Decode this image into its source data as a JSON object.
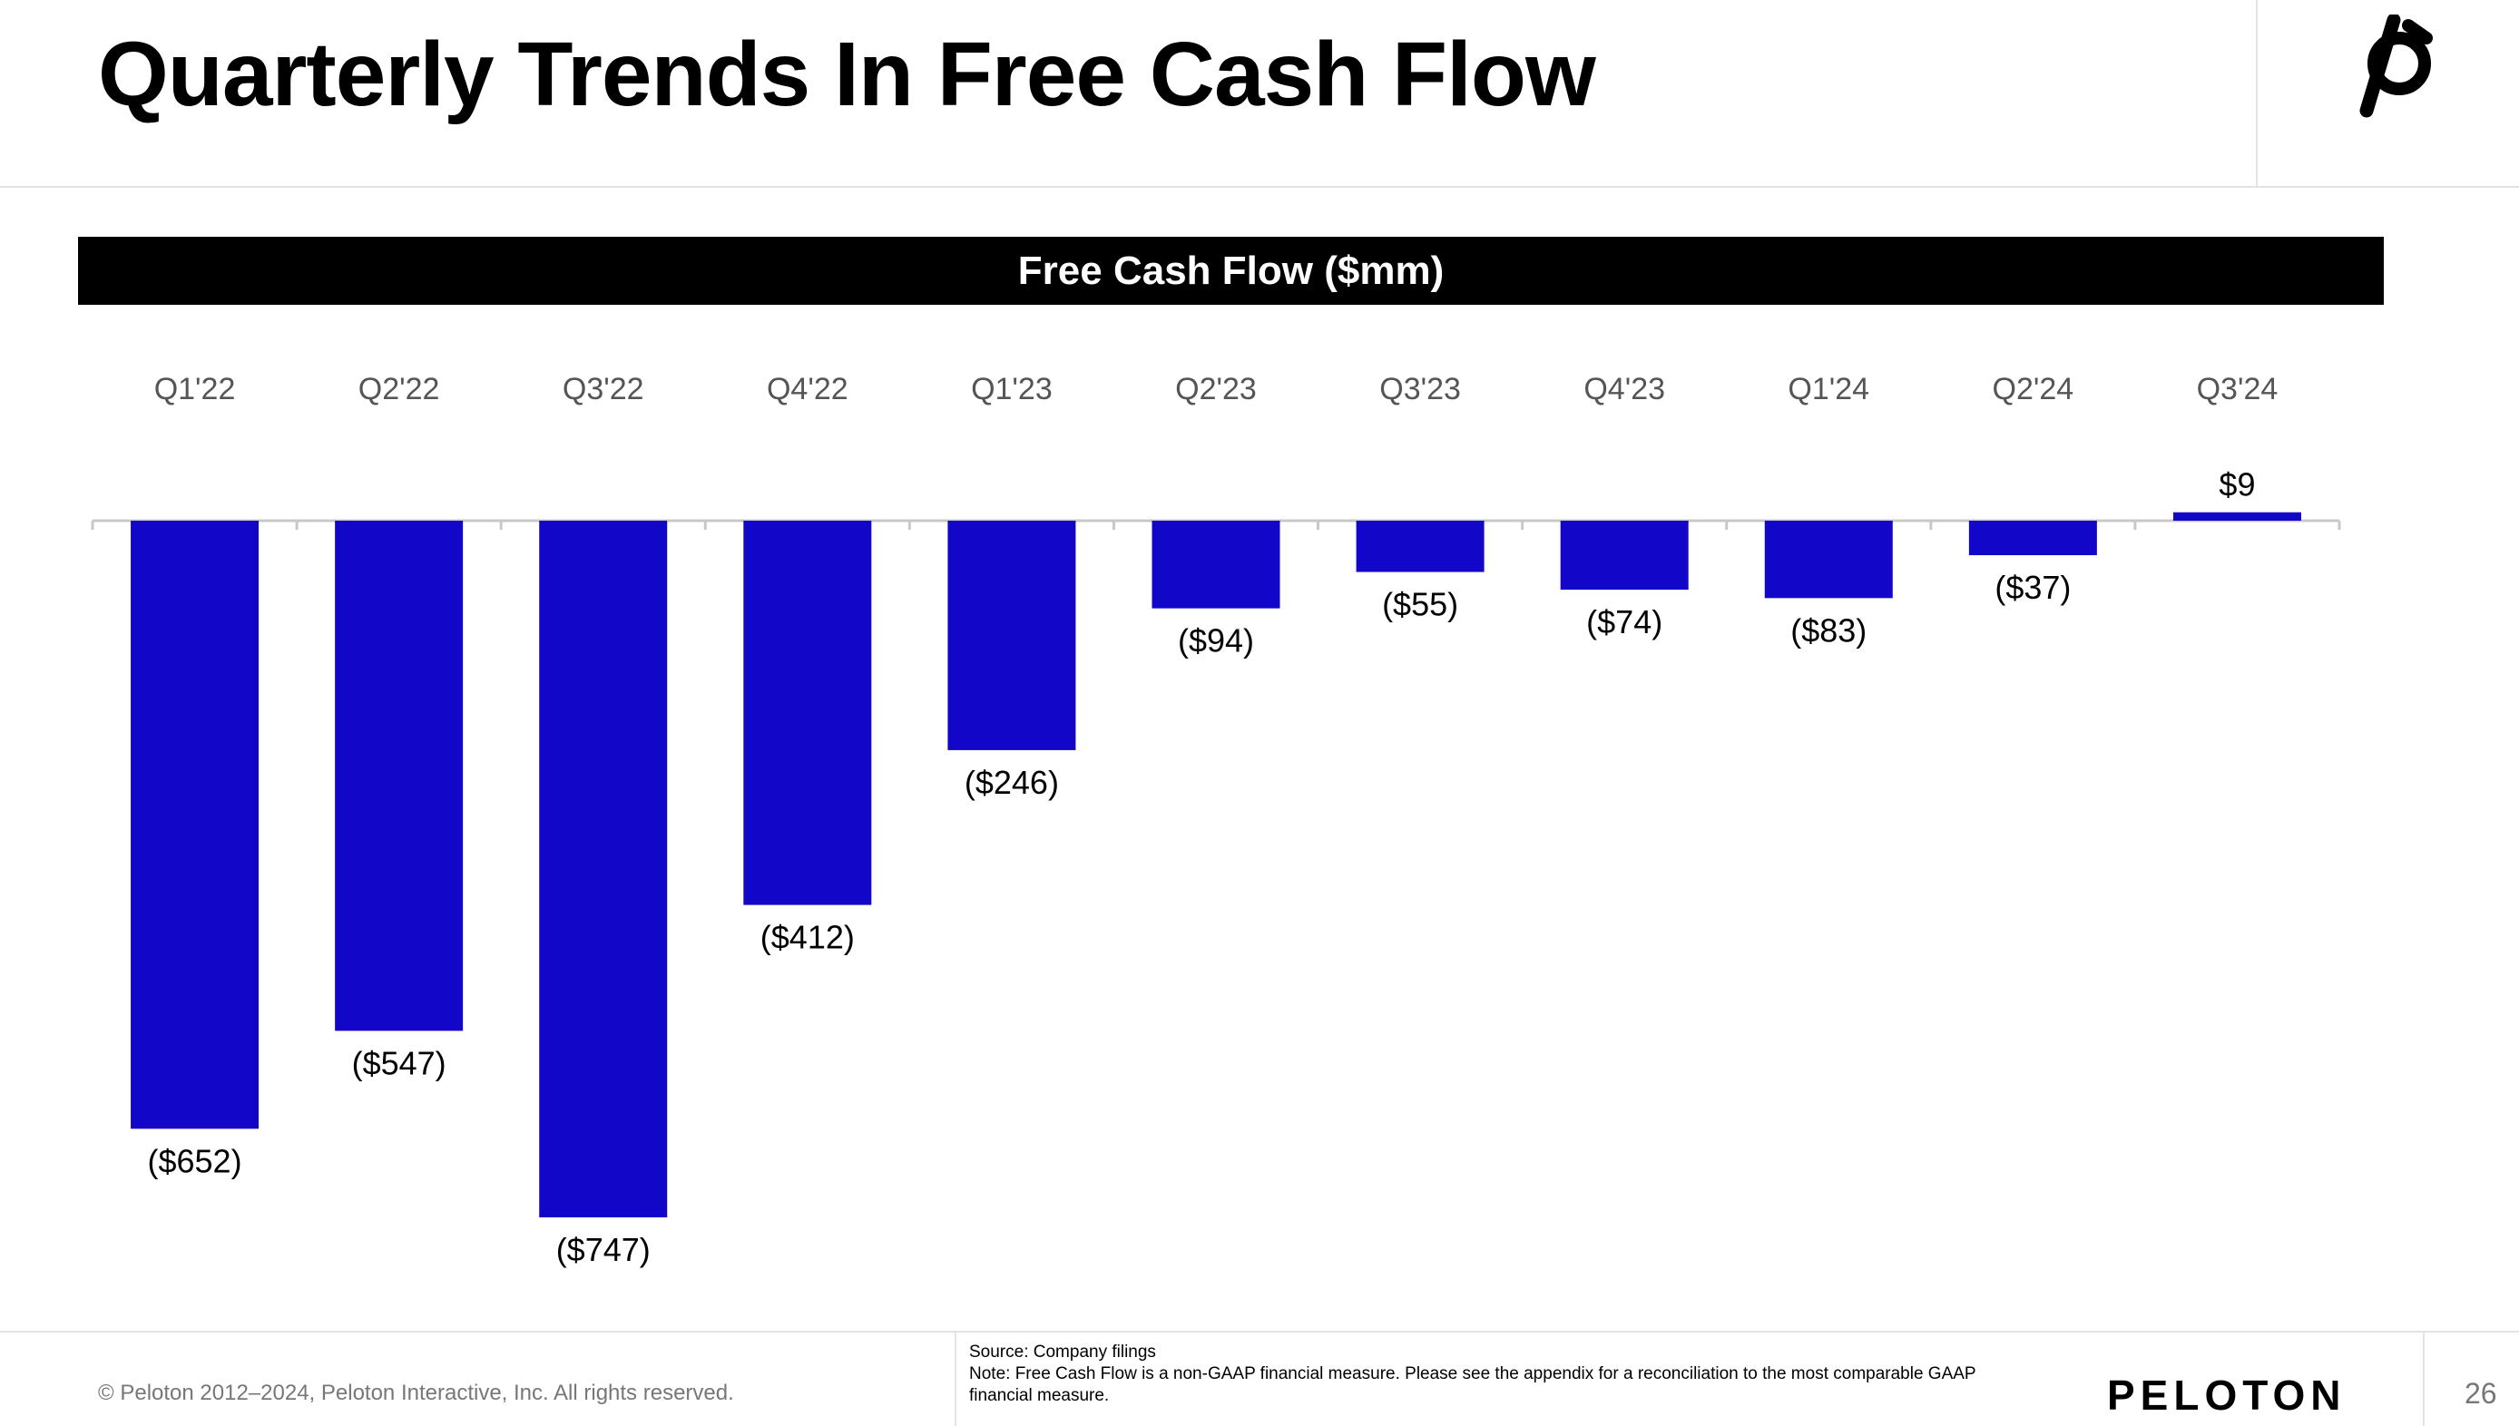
{
  "slide": {
    "title": "Quarterly Trends In Free Cash Flow",
    "page_number": "26"
  },
  "logo": {
    "icon": "peloton-logo-icon"
  },
  "chart_banner": "Free Cash Flow ($mm)",
  "chart_data": {
    "type": "bar",
    "title": "Free Cash Flow ($mm)",
    "categories": [
      "Q1'22",
      "Q2'22",
      "Q3'22",
      "Q4'22",
      "Q1'23",
      "Q2'23",
      "Q3'23",
      "Q4'23",
      "Q1'24",
      "Q2'24",
      "Q3'24"
    ],
    "values": [
      -652,
      -547,
      -747,
      -412,
      -246,
      -94,
      -55,
      -74,
      -83,
      -37,
      9
    ],
    "data_labels": [
      "($652)",
      "($547)",
      "($747)",
      "($412)",
      "($246)",
      "($94)",
      "($55)",
      "($74)",
      "($83)",
      "($37)",
      "$9"
    ],
    "xlabel": "",
    "ylabel": "",
    "category_axis_position": "top",
    "ylim": [
      -747,
      9
    ],
    "grid": false,
    "legend": "none",
    "bar_color": "#1207c8"
  },
  "footer": {
    "copyright": "© Peloton 2012–2024, Peloton Interactive, Inc. All rights reserved.",
    "source": "Source: Company filings",
    "note": "Note: Free Cash Flow is a non-GAAP financial measure. Please see the appendix for a reconciliation to the most comparable GAAP financial measure.",
    "brand": "PELOTON"
  }
}
